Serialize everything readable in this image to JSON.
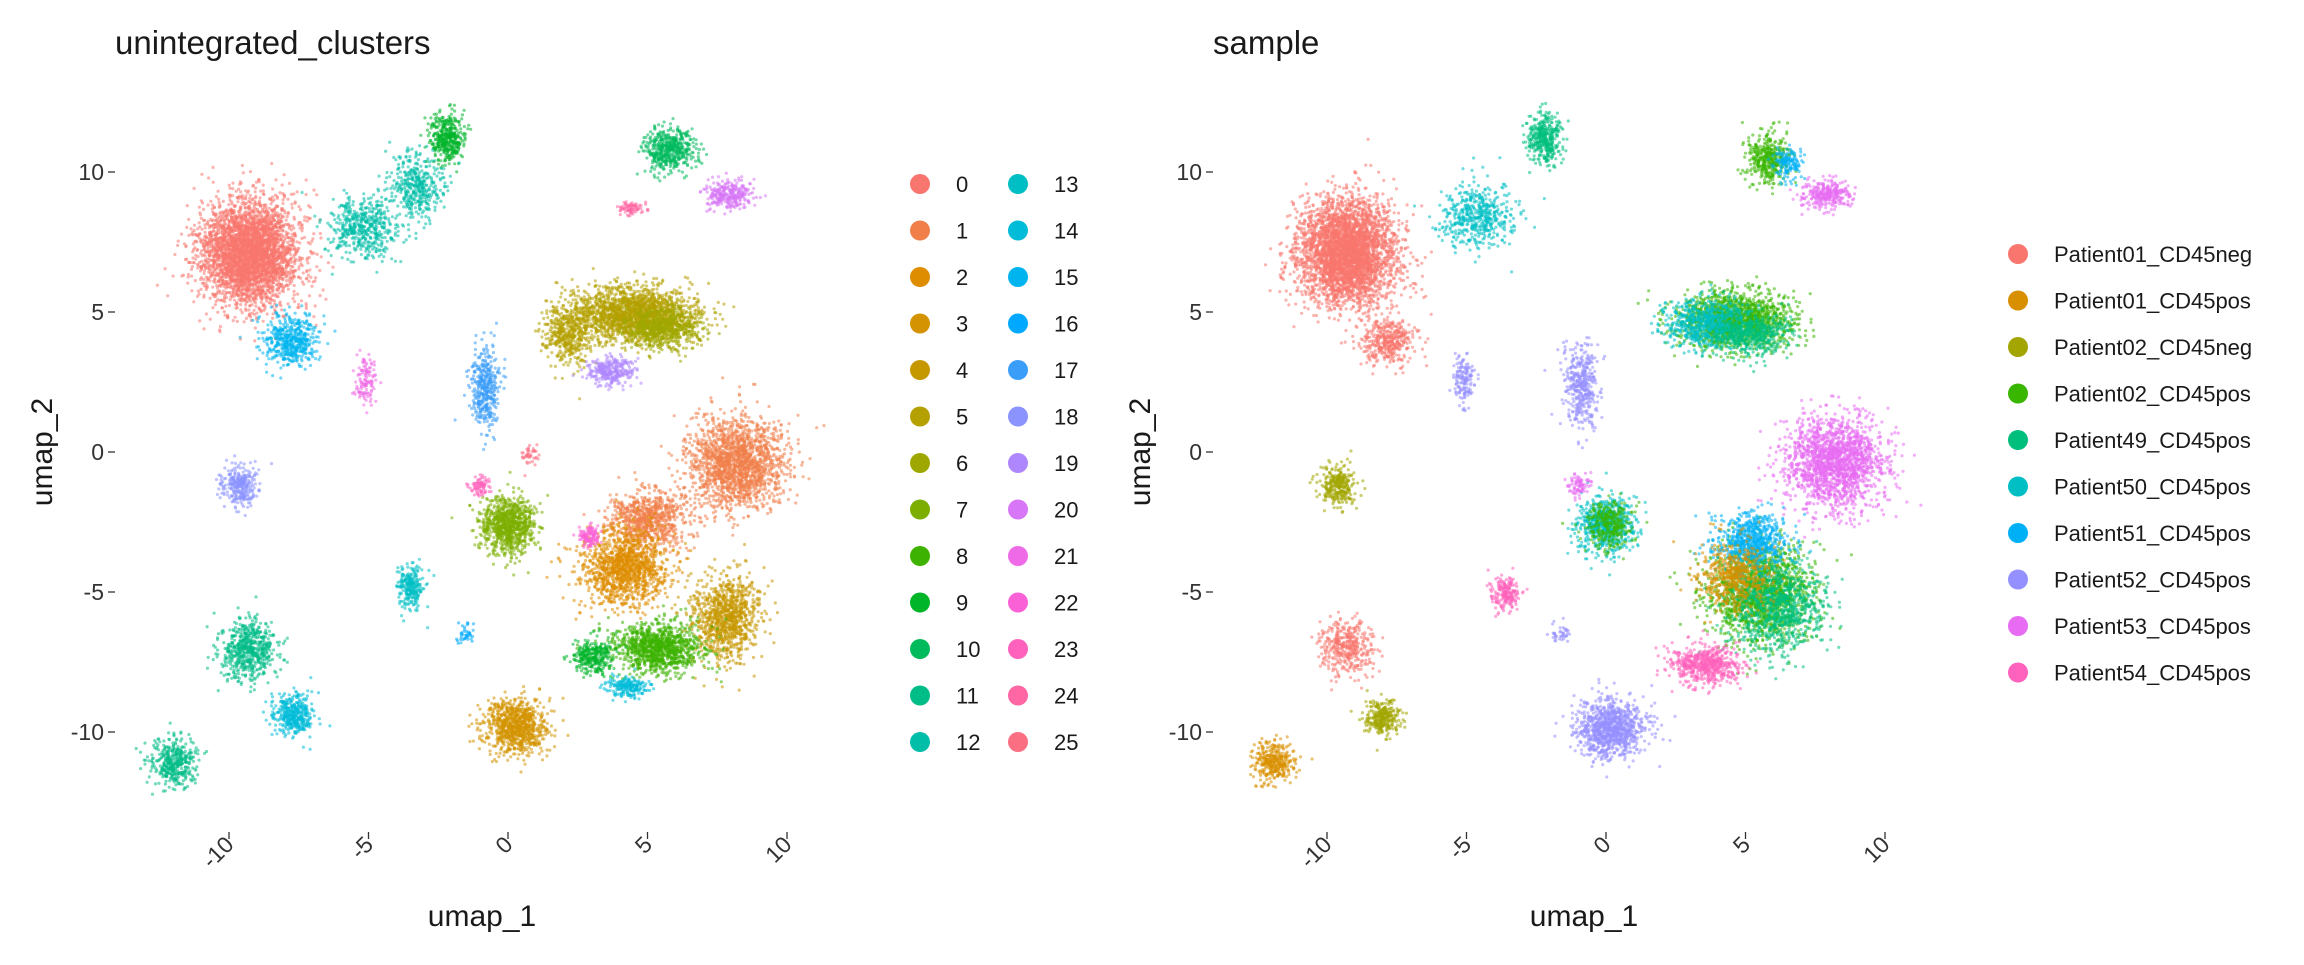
{
  "chart_data": [
    {
      "type": "scatter",
      "title": "unintegrated_clusters",
      "xlabel": "umap_1",
      "ylabel": "umap_2",
      "xlim": [
        -14,
        11.5
      ],
      "ylim": [
        -13.5,
        12.5
      ],
      "xticks": [
        -10,
        -5,
        0,
        5,
        10
      ],
      "yticks": [
        10,
        5,
        0,
        -5,
        -10
      ],
      "xtick_labels": [
        "-10",
        "-5",
        "0",
        "5",
        "10"
      ],
      "ytick_labels": [
        "10 -",
        "5 -",
        "0 -",
        "-5 -",
        "-10 -"
      ],
      "grid": false,
      "legend_position": "right",
      "legend_columns": 2,
      "legend": [
        {
          "label": "0",
          "color": "#F8766D"
        },
        {
          "label": "1",
          "color": "#F07F4A"
        },
        {
          "label": "2",
          "color": "#DE8C00"
        },
        {
          "label": "3",
          "color": "#D49300"
        },
        {
          "label": "4",
          "color": "#C69800"
        },
        {
          "label": "5",
          "color": "#B4A000"
        },
        {
          "label": "6",
          "color": "#9EA700"
        },
        {
          "label": "7",
          "color": "#7CAE00"
        },
        {
          "label": "8",
          "color": "#3DB200"
        },
        {
          "label": "9",
          "color": "#00B529"
        },
        {
          "label": "10",
          "color": "#00BA5C"
        },
        {
          "label": "11",
          "color": "#00BC86"
        },
        {
          "label": "12",
          "color": "#00BEA8"
        },
        {
          "label": "13",
          "color": "#00BFC4"
        },
        {
          "label": "14",
          "color": "#00BCD8"
        },
        {
          "label": "15",
          "color": "#00B4EF"
        },
        {
          "label": "16",
          "color": "#00A9FF"
        },
        {
          "label": "17",
          "color": "#3A9DF7"
        },
        {
          "label": "18",
          "color": "#8B93FF"
        },
        {
          "label": "19",
          "color": "#AE87FF"
        },
        {
          "label": "20",
          "color": "#D776F6"
        },
        {
          "label": "21",
          "color": "#EE6AE6"
        },
        {
          "label": "22",
          "color": "#FB61D7"
        },
        {
          "label": "23",
          "color": "#FF62BC"
        },
        {
          "label": "24",
          "color": "#FF67A4"
        },
        {
          "label": "25",
          "color": "#FB6F82"
        }
      ],
      "clusters": [
        {
          "cat": "0",
          "cx": -9.3,
          "cy": 7.1,
          "sx": 1.4,
          "sy": 1.5,
          "n": 3600
        },
        {
          "cat": "1",
          "cx": 8.2,
          "cy": -0.4,
          "sx": 1.4,
          "sy": 1.3,
          "n": 1800
        },
        {
          "cat": "1",
          "cx": 5.0,
          "cy": -2.4,
          "sx": 1.1,
          "sy": 0.8,
          "n": 800
        },
        {
          "cat": "2",
          "cx": 4.2,
          "cy": -4.1,
          "sx": 1.2,
          "sy": 1.1,
          "n": 1300
        },
        {
          "cat": "3",
          "cx": 0.3,
          "cy": -9.8,
          "sx": 0.9,
          "sy": 0.8,
          "n": 900
        },
        {
          "cat": "4",
          "cx": 7.8,
          "cy": -5.9,
          "sx": 1.0,
          "sy": 1.2,
          "n": 1000
        },
        {
          "cat": "5",
          "cx": 4.6,
          "cy": 4.9,
          "sx": 1.7,
          "sy": 0.8,
          "n": 1900
        },
        {
          "cat": "5",
          "cx": 2.2,
          "cy": 4.3,
          "sx": 0.7,
          "sy": 0.9,
          "n": 500
        },
        {
          "cat": "6",
          "cx": 5.5,
          "cy": 4.4,
          "sx": 1.1,
          "sy": 0.6,
          "n": 600
        },
        {
          "cat": "7",
          "cx": 0.0,
          "cy": -2.6,
          "sx": 0.8,
          "sy": 0.8,
          "n": 900
        },
        {
          "cat": "8",
          "cx": 5.4,
          "cy": -7.0,
          "sx": 1.3,
          "sy": 0.7,
          "n": 1100
        },
        {
          "cat": "9",
          "cx": 3.1,
          "cy": -7.3,
          "sx": 0.6,
          "sy": 0.5,
          "n": 300
        },
        {
          "cat": "9",
          "cx": -2.2,
          "cy": 11.2,
          "sx": 0.5,
          "sy": 0.7,
          "n": 400
        },
        {
          "cat": "10",
          "cx": 5.8,
          "cy": 10.8,
          "sx": 0.7,
          "sy": 0.6,
          "n": 500
        },
        {
          "cat": "11",
          "cx": -9.3,
          "cy": -7.1,
          "sx": 0.8,
          "sy": 0.9,
          "n": 600
        },
        {
          "cat": "11",
          "cx": -12.0,
          "cy": -11.1,
          "sx": 0.7,
          "sy": 0.7,
          "n": 400
        },
        {
          "cat": "12",
          "cx": -5.2,
          "cy": 8.0,
          "sx": 1.0,
          "sy": 0.9,
          "n": 500
        },
        {
          "cat": "12",
          "cx": -3.3,
          "cy": 9.5,
          "sx": 0.8,
          "sy": 0.9,
          "n": 400
        },
        {
          "cat": "13",
          "cx": -3.5,
          "cy": -4.8,
          "sx": 0.4,
          "sy": 0.6,
          "n": 250
        },
        {
          "cat": "14",
          "cx": -7.7,
          "cy": -9.4,
          "sx": 0.6,
          "sy": 0.6,
          "n": 400
        },
        {
          "cat": "14",
          "cx": 4.3,
          "cy": -8.4,
          "sx": 0.6,
          "sy": 0.3,
          "n": 200
        },
        {
          "cat": "15",
          "cx": -7.8,
          "cy": 4.0,
          "sx": 0.8,
          "sy": 0.7,
          "n": 500
        },
        {
          "cat": "16",
          "cx": -1.5,
          "cy": -6.5,
          "sx": 0.3,
          "sy": 0.3,
          "n": 40
        },
        {
          "cat": "17",
          "cx": -0.8,
          "cy": 2.3,
          "sx": 0.4,
          "sy": 1.1,
          "n": 400
        },
        {
          "cat": "18",
          "cx": -9.6,
          "cy": -1.2,
          "sx": 0.5,
          "sy": 0.6,
          "n": 300
        },
        {
          "cat": "19",
          "cx": 3.7,
          "cy": 2.9,
          "sx": 0.7,
          "sy": 0.4,
          "n": 300
        },
        {
          "cat": "20",
          "cx": 7.9,
          "cy": 9.2,
          "sx": 0.7,
          "sy": 0.4,
          "n": 300
        },
        {
          "cat": "21",
          "cx": -5.1,
          "cy": 2.5,
          "sx": 0.3,
          "sy": 0.7,
          "n": 120
        },
        {
          "cat": "22",
          "cx": 2.9,
          "cy": -3.0,
          "sx": 0.3,
          "sy": 0.3,
          "n": 120
        },
        {
          "cat": "23",
          "cx": -1.0,
          "cy": -1.2,
          "sx": 0.3,
          "sy": 0.3,
          "n": 80
        },
        {
          "cat": "24",
          "cx": 4.4,
          "cy": 8.7,
          "sx": 0.4,
          "sy": 0.2,
          "n": 80
        },
        {
          "cat": "25",
          "cx": 0.8,
          "cy": -0.1,
          "sx": 0.3,
          "sy": 0.3,
          "n": 40
        }
      ]
    },
    {
      "type": "scatter",
      "title": "sample",
      "xlabel": "umap_1",
      "ylabel": "umap_2",
      "xlim": [
        -14,
        11.5
      ],
      "ylim": [
        -13.5,
        12.5
      ],
      "xticks": [
        -10,
        -5,
        0,
        5,
        10
      ],
      "yticks": [
        10,
        5,
        0,
        -5,
        -10
      ],
      "xtick_labels": [
        "-10",
        "-5",
        "0",
        "5",
        "10"
      ],
      "ytick_labels": [
        "10 -",
        "5 -",
        "0 -",
        "-5 -",
        "-10 -"
      ],
      "grid": false,
      "legend_position": "right",
      "legend_columns": 1,
      "legend": [
        {
          "label": "Patient01_CD45neg",
          "color": "#F8766D"
        },
        {
          "label": "Patient01_CD45pos",
          "color": "#D89000"
        },
        {
          "label": "Patient02_CD45neg",
          "color": "#A3A500"
        },
        {
          "label": "Patient02_CD45pos",
          "color": "#39B600"
        },
        {
          "label": "Patient49_CD45pos",
          "color": "#00BF7D"
        },
        {
          "label": "Patient50_CD45pos",
          "color": "#00BFC4"
        },
        {
          "label": "Patient51_CD45pos",
          "color": "#00B0F6"
        },
        {
          "label": "Patient52_CD45pos",
          "color": "#9590FF"
        },
        {
          "label": "Patient53_CD45pos",
          "color": "#E76BF3"
        },
        {
          "label": "Patient54_CD45pos",
          "color": "#FF62BC"
        }
      ],
      "clusters": [
        {
          "cat": "Patient01_CD45neg",
          "cx": -9.3,
          "cy": 7.1,
          "sx": 1.4,
          "sy": 1.5,
          "n": 3600
        },
        {
          "cat": "Patient01_CD45neg",
          "cx": -7.8,
          "cy": 4.0,
          "sx": 0.8,
          "sy": 0.7,
          "n": 400
        },
        {
          "cat": "Patient53_CD45pos",
          "cx": 8.2,
          "cy": -0.4,
          "sx": 1.4,
          "sy": 1.3,
          "n": 1800
        },
        {
          "cat": "Patient02_CD45pos",
          "cx": 5.5,
          "cy": -5.0,
          "sx": 1.5,
          "sy": 1.4,
          "n": 1600
        },
        {
          "cat": "Patient49_CD45pos",
          "cx": 6.2,
          "cy": -5.6,
          "sx": 1.3,
          "sy": 1.3,
          "n": 900
        },
        {
          "cat": "Patient51_CD45pos",
          "cx": 5.2,
          "cy": -3.2,
          "sx": 1.1,
          "sy": 0.8,
          "n": 700
        },
        {
          "cat": "Patient01_CD45pos",
          "cx": 4.6,
          "cy": -4.4,
          "sx": 1.1,
          "sy": 1.0,
          "n": 500
        },
        {
          "cat": "Patient54_CD45pos",
          "cx": 3.6,
          "cy": -7.6,
          "sx": 1.0,
          "sy": 0.6,
          "n": 600
        },
        {
          "cat": "Patient52_CD45pos",
          "cx": 0.2,
          "cy": -9.9,
          "sx": 1.0,
          "sy": 0.8,
          "n": 1000
        },
        {
          "cat": "Patient02_CD45pos",
          "cx": 4.6,
          "cy": 4.7,
          "sx": 1.6,
          "sy": 0.8,
          "n": 1500
        },
        {
          "cat": "Patient50_CD45pos",
          "cx": 3.6,
          "cy": 4.6,
          "sx": 1.2,
          "sy": 0.7,
          "n": 700
        },
        {
          "cat": "Patient49_CD45pos",
          "cx": 5.2,
          "cy": 4.2,
          "sx": 1.1,
          "sy": 0.6,
          "n": 500
        },
        {
          "cat": "Patient50_CD45pos",
          "cx": 0.0,
          "cy": -2.6,
          "sx": 0.8,
          "sy": 0.8,
          "n": 700
        },
        {
          "cat": "Patient02_CD45pos",
          "cx": 0.1,
          "cy": -2.6,
          "sx": 0.7,
          "sy": 0.7,
          "n": 300
        },
        {
          "cat": "Patient49_CD45pos",
          "cx": -2.2,
          "cy": 11.2,
          "sx": 0.5,
          "sy": 0.7,
          "n": 400
        },
        {
          "cat": "Patient50_CD45pos",
          "cx": -4.6,
          "cy": 8.4,
          "sx": 1.0,
          "sy": 0.9,
          "n": 500
        },
        {
          "cat": "Patient02_CD45pos",
          "cx": 5.8,
          "cy": 10.5,
          "sx": 0.6,
          "sy": 0.7,
          "n": 400
        },
        {
          "cat": "Patient51_CD45pos",
          "cx": 6.5,
          "cy": 10.3,
          "sx": 0.4,
          "sy": 0.5,
          "n": 150
        },
        {
          "cat": "Patient53_CD45pos",
          "cx": 7.9,
          "cy": 9.2,
          "sx": 0.7,
          "sy": 0.4,
          "n": 300
        },
        {
          "cat": "Patient02_CD45neg",
          "cx": -9.6,
          "cy": -1.2,
          "sx": 0.5,
          "sy": 0.6,
          "n": 300
        },
        {
          "cat": "Patient01_CD45neg",
          "cx": -9.3,
          "cy": -7.0,
          "sx": 0.8,
          "sy": 0.8,
          "n": 400
        },
        {
          "cat": "Patient02_CD45neg",
          "cx": -8.0,
          "cy": -9.5,
          "sx": 0.5,
          "sy": 0.5,
          "n": 300
        },
        {
          "cat": "Patient01_CD45pos",
          "cx": -11.9,
          "cy": -11.1,
          "sx": 0.6,
          "sy": 0.6,
          "n": 350
        },
        {
          "cat": "Patient52_CD45pos",
          "cx": -0.9,
          "cy": 2.4,
          "sx": 0.5,
          "sy": 1.2,
          "n": 400
        },
        {
          "cat": "Patient52_CD45pos",
          "cx": -5.1,
          "cy": 2.6,
          "sx": 0.3,
          "sy": 0.7,
          "n": 150
        },
        {
          "cat": "Patient54_CD45pos",
          "cx": -3.6,
          "cy": -5.1,
          "sx": 0.4,
          "sy": 0.5,
          "n": 200
        },
        {
          "cat": "Patient52_CD45pos",
          "cx": -1.6,
          "cy": -6.5,
          "sx": 0.3,
          "sy": 0.3,
          "n": 40
        },
        {
          "cat": "Patient53_CD45pos",
          "cx": -1.0,
          "cy": -1.2,
          "sx": 0.3,
          "sy": 0.3,
          "n": 80
        }
      ]
    }
  ]
}
